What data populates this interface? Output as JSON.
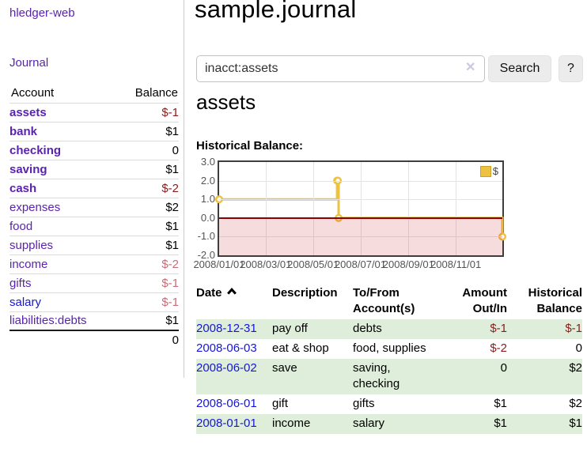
{
  "colors": {
    "brand_purple": "#5a23ae",
    "link_blue": "#1616d9",
    "negative_red": "#8b1c1c",
    "negative_muted_red": "#c76d77",
    "row_stripe_green": "#dfeeda",
    "chart_line_yellow": "#edc240",
    "zero_line_red": "#8b0000"
  },
  "app": {
    "brand": "hledger-web",
    "nav_journal": "Journal"
  },
  "sidebar": {
    "headers": {
      "account": "Account",
      "balance": "Balance"
    },
    "accounts": [
      {
        "name": "assets",
        "balance": "$-1"
      },
      {
        "name": "bank",
        "balance": "$1"
      },
      {
        "name": "checking",
        "balance": "0"
      },
      {
        "name": "saving",
        "balance": "$1"
      },
      {
        "name": "cash",
        "balance": "$-2"
      },
      {
        "name": "expenses",
        "balance": "$2"
      },
      {
        "name": "food",
        "balance": "$1"
      },
      {
        "name": "supplies",
        "balance": "$1"
      },
      {
        "name": "income",
        "balance": "$-2"
      },
      {
        "name": "gifts",
        "balance": "$-1"
      },
      {
        "name": "salary",
        "balance": "$-1"
      },
      {
        "name": "liabilities:debts",
        "balance": "$1"
      }
    ],
    "total": "0"
  },
  "main": {
    "title": "sample.journal",
    "search": {
      "value": "inacct:assets",
      "clear_icon": "✕",
      "button": "Search",
      "help_button": "?"
    },
    "account_heading": "assets",
    "chart_label": "Historical Balance:"
  },
  "register": {
    "headers": {
      "date": "Date",
      "description": "Description",
      "to_from": "To/From\nAccount(s)",
      "amount": "Amount\nOut/In",
      "balance": "Historical\nBalance"
    },
    "rows": [
      {
        "date": "2008-12-31",
        "description": "pay off",
        "to_from": "debts",
        "amount": "$-1",
        "balance": "$-1"
      },
      {
        "date": "2008-06-03",
        "description": "eat & shop",
        "to_from": "food, supplies",
        "amount": "$-2",
        "balance": "0"
      },
      {
        "date": "2008-06-02",
        "description": "save",
        "to_from": "saving,\nchecking",
        "amount": "0",
        "balance": "$2"
      },
      {
        "date": "2008-06-01",
        "description": "gift",
        "to_from": "gifts",
        "amount": "$1",
        "balance": "$2"
      },
      {
        "date": "2008-01-01",
        "description": "income",
        "to_from": "salary",
        "amount": "$1",
        "balance": "$1"
      }
    ]
  },
  "chart_data": {
    "type": "line",
    "title": "Historical Balance",
    "step": true,
    "series": [
      {
        "name": "$",
        "points": [
          [
            "2008-01-01",
            1.0
          ],
          [
            "2008-06-01",
            2.0
          ],
          [
            "2008-06-02",
            2.0
          ],
          [
            "2008-06-03",
            0.0
          ],
          [
            "2008-12-31",
            -1.0
          ]
        ]
      }
    ],
    "xlim": [
      "2008-01-01",
      "2008-12-31"
    ],
    "ylim": [
      -2.0,
      3.0
    ],
    "yticks": [
      "3.0",
      "2.0",
      "1.0",
      "0.0",
      "-1.0",
      "-2.0"
    ],
    "xticks": [
      "2008/01/01",
      "2008/03/01",
      "2008/05/01",
      "2008/07/01",
      "2008/09/01",
      "2008/11/01"
    ],
    "legend": {
      "label": "$",
      "position": "top-right"
    },
    "grid": true,
    "negative_region_shaded": true
  }
}
